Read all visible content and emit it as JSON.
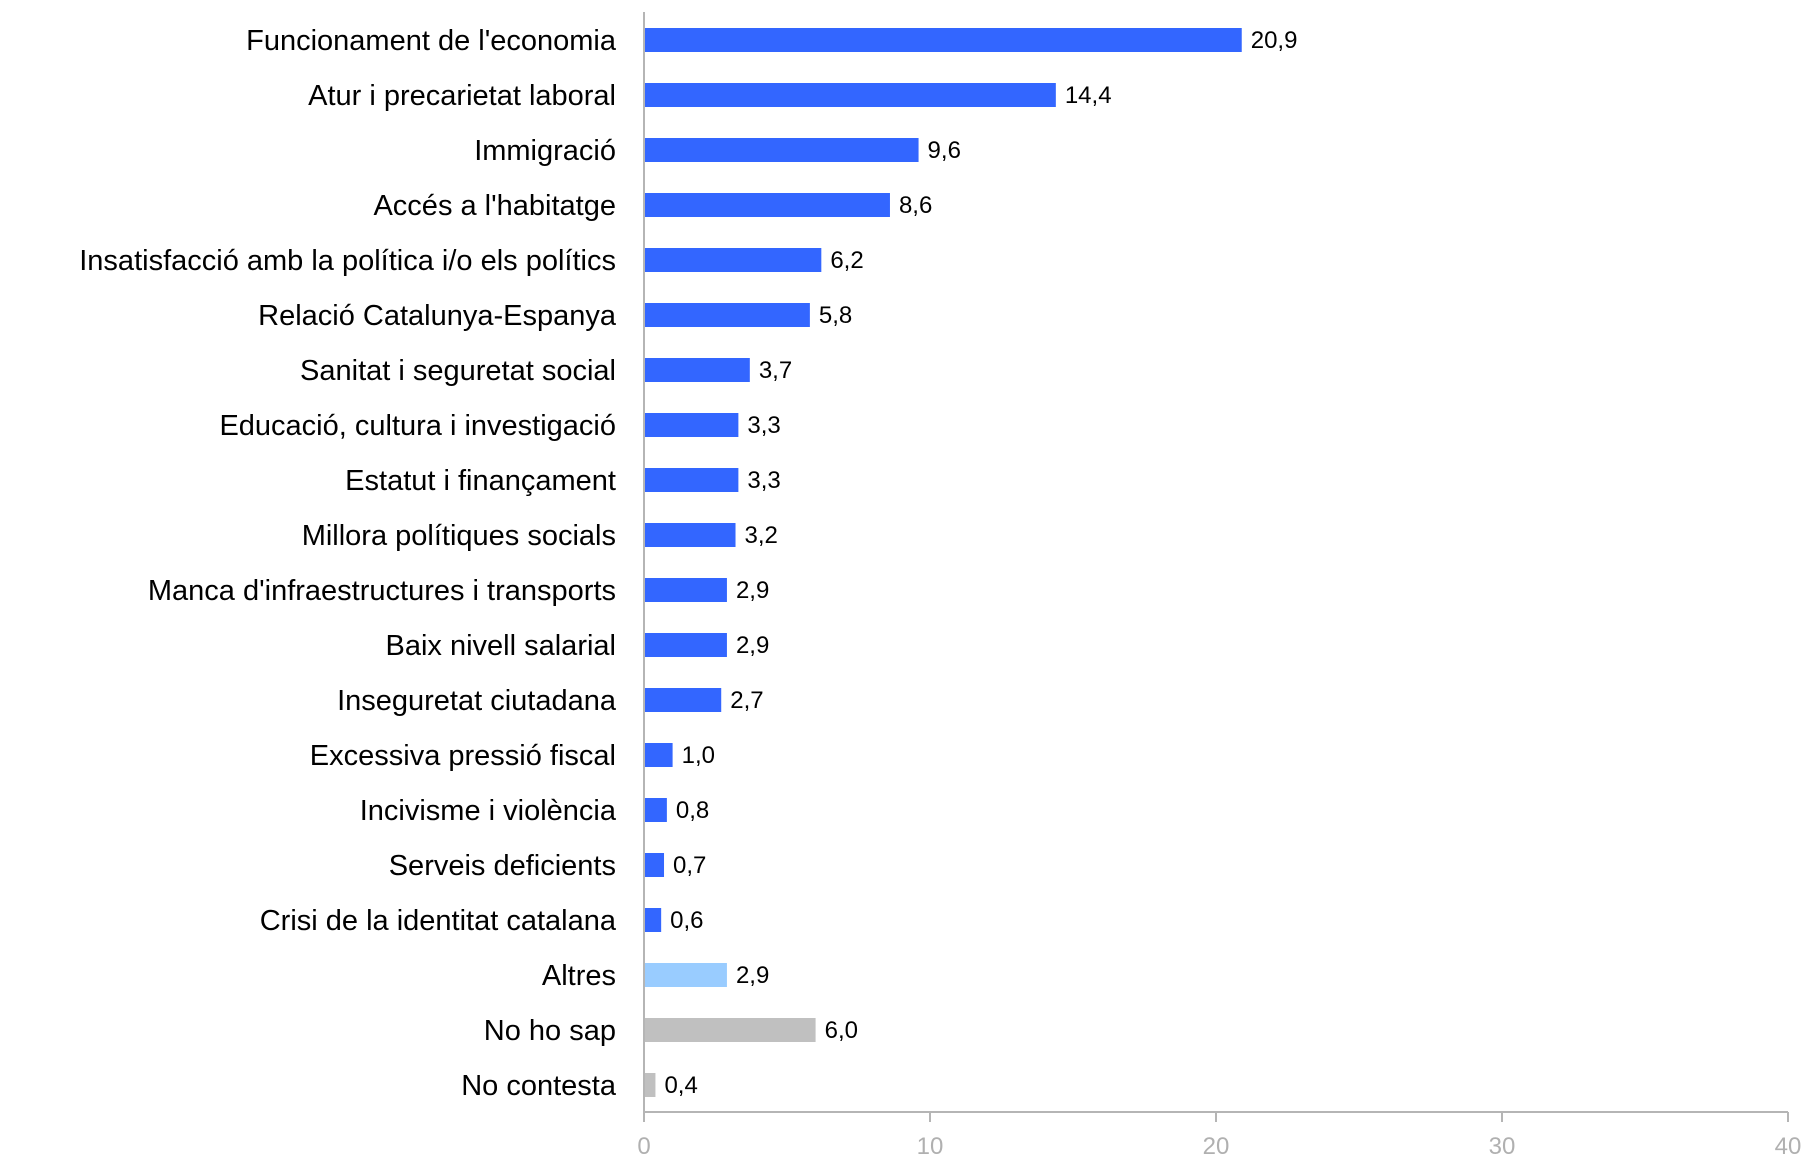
{
  "chart_data": {
    "type": "bar",
    "orientation": "horizontal",
    "title": "",
    "xlabel": "",
    "ylabel": "",
    "xlim": [
      0,
      40
    ],
    "xticks": [
      0,
      10,
      20,
      30,
      40
    ],
    "grid": false,
    "legend": "none",
    "categories": [
      "Funcionament de l'economia",
      "Atur i precarietat laboral",
      "Immigració",
      "Accés a l'habitatge",
      "Insatisfacció amb la política i/o els polítics",
      "Relació Catalunya-Espanya",
      "Sanitat i seguretat social",
      "Educació, cultura i investigació",
      "Estatut i finançament",
      "Millora polítiques socials",
      "Manca d'infraestructures i transports",
      "Baix nivell salarial",
      "Inseguretat ciutadana",
      "Excessiva pressió fiscal",
      "Incivisme i violència",
      "Serveis deficients",
      "Crisi de la identitat catalana",
      "Altres",
      "No ho sap",
      "No contesta"
    ],
    "values": [
      20.9,
      14.4,
      9.6,
      8.6,
      6.2,
      5.8,
      3.7,
      3.3,
      3.3,
      3.2,
      2.9,
      2.9,
      2.7,
      1.0,
      0.8,
      0.7,
      0.6,
      2.9,
      6.0,
      0.4
    ],
    "value_labels": [
      "20,9",
      "14,4",
      "9,6",
      "8,6",
      "6,2",
      "5,8",
      "3,7",
      "3,3",
      "3,3",
      "3,2",
      "2,9",
      "2,9",
      "2,7",
      "1,0",
      "0,8",
      "0,7",
      "0,6",
      "2,9",
      "6,0",
      "0,4"
    ],
    "tick_labels": [
      "0",
      "10",
      "20",
      "30",
      "40"
    ],
    "bar_colors": [
      "#3366ff",
      "#3366ff",
      "#3366ff",
      "#3366ff",
      "#3366ff",
      "#3366ff",
      "#3366ff",
      "#3366ff",
      "#3366ff",
      "#3366ff",
      "#3366ff",
      "#3366ff",
      "#3366ff",
      "#3366ff",
      "#3366ff",
      "#3366ff",
      "#3366ff",
      "#99ccff",
      "#c0c0c0",
      "#c0c0c0"
    ]
  }
}
